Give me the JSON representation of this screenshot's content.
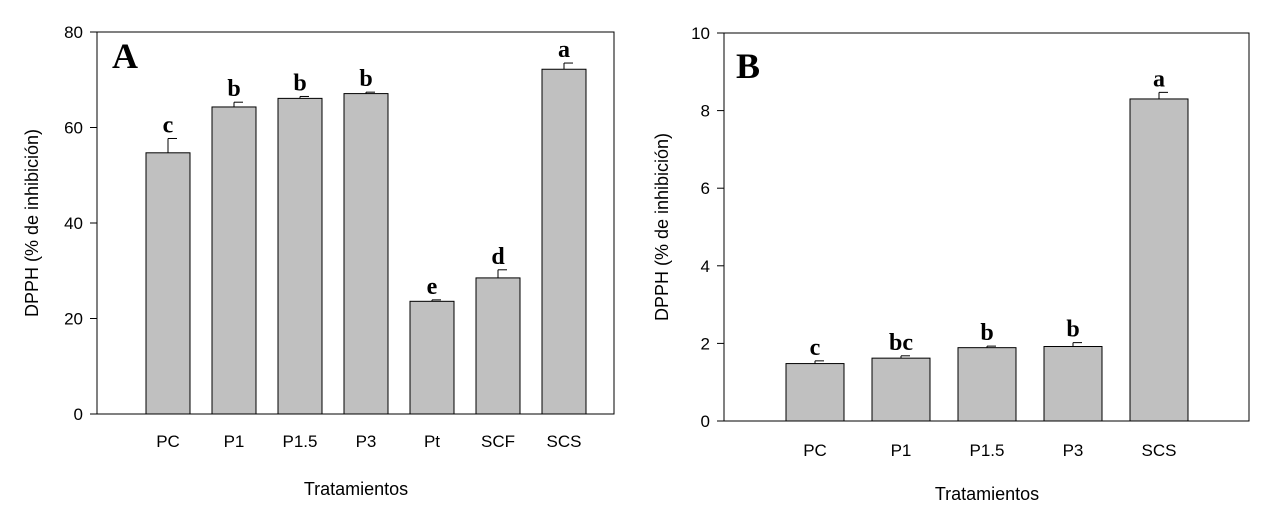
{
  "chart_data": [
    {
      "type": "bar",
      "panel_label": "A",
      "xlabel": "Tratamientos",
      "ylabel": "DPPH (% de inhibición)",
      "ylim": [
        0,
        80
      ],
      "yticks": [
        "0",
        "20",
        "40",
        "60",
        "80"
      ],
      "categories": [
        "PC",
        "P1",
        "P1.5",
        "P3",
        "Pt",
        "SCF",
        "SCS"
      ],
      "values": [
        54.7,
        64.3,
        66.1,
        67.1,
        23.6,
        28.5,
        72.2
      ],
      "errors": [
        3.0,
        1.0,
        0.4,
        0.3,
        0.3,
        1.7,
        1.3
      ],
      "significance": [
        "c",
        "b",
        "b",
        "b",
        "e",
        "d",
        "a"
      ],
      "bar_color": "#c0c0c0",
      "grid": false
    },
    {
      "type": "bar",
      "panel_label": "B",
      "xlabel": "Tratamientos",
      "ylabel": "DPPH (% de inhibición)",
      "ylim": [
        0,
        10
      ],
      "yticks": [
        "0",
        "2",
        "4",
        "6",
        "8",
        "10"
      ],
      "categories": [
        "PC",
        "P1",
        "P1.5",
        "P3",
        "SCS"
      ],
      "values": [
        1.48,
        1.62,
        1.89,
        1.92,
        8.3
      ],
      "errors": [
        0.07,
        0.06,
        0.04,
        0.1,
        0.17
      ],
      "significance": [
        "c",
        "bc",
        "b",
        "b",
        "a"
      ],
      "bar_color": "#c0c0c0",
      "grid": false
    }
  ]
}
